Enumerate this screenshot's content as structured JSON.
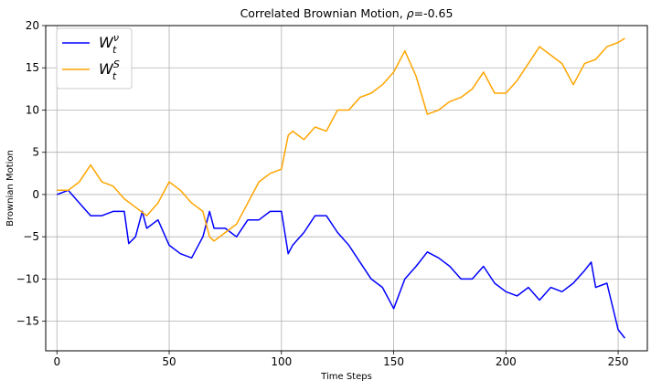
{
  "chart_data": {
    "type": "line",
    "title_prefix": "Correlated Brownian Motion, ",
    "title_rho": "ρ",
    "title_suffix": "=-0.65",
    "xlabel": "Time Steps",
    "ylabel": "Brownian Motion",
    "xlim": [
      -5,
      263
    ],
    "ylim": [
      -18.5,
      20
    ],
    "xticks": [
      0,
      50,
      100,
      150,
      200,
      250
    ],
    "yticks": [
      -15,
      -10,
      -5,
      0,
      5,
      10,
      15,
      20
    ],
    "grid": true,
    "legend_position": "top-left",
    "series": [
      {
        "name_main": "W",
        "name_sup": "ν",
        "name_sub": "t",
        "color": "#0000ff",
        "x": [
          0,
          5,
          10,
          15,
          20,
          25,
          30,
          32,
          35,
          38,
          40,
          45,
          50,
          55,
          60,
          65,
          68,
          70,
          75,
          80,
          85,
          90,
          95,
          100,
          103,
          105,
          110,
          115,
          120,
          125,
          130,
          135,
          140,
          145,
          150,
          155,
          160,
          165,
          170,
          175,
          180,
          185,
          190,
          195,
          200,
          205,
          210,
          215,
          220,
          225,
          230,
          235,
          238,
          240,
          245,
          250,
          253
        ],
        "values": [
          0,
          0.5,
          -1.0,
          -2.5,
          -2.5,
          -2.0,
          -2.0,
          -5.8,
          -5.0,
          -2.0,
          -4.0,
          -3.0,
          -6.0,
          -7.0,
          -7.5,
          -5.0,
          -2.0,
          -4.0,
          -4.0,
          -5.0,
          -3.0,
          -3.0,
          -2.0,
          -2.0,
          -7.0,
          -6.0,
          -4.5,
          -2.5,
          -2.5,
          -4.5,
          -6.0,
          -8.0,
          -10.0,
          -11.0,
          -13.5,
          -10.0,
          -8.5,
          -6.8,
          -7.5,
          -8.5,
          -10.0,
          -10.0,
          -8.5,
          -10.5,
          -11.5,
          -12.0,
          -11.0,
          -12.5,
          -11.0,
          -11.5,
          -10.5,
          -9.0,
          -8.0,
          -11.0,
          -10.5,
          -16.0,
          -17.0
        ]
      },
      {
        "name_main": "W",
        "name_sup": "S",
        "name_sub": "t",
        "color": "#ffa500",
        "x": [
          0,
          5,
          10,
          15,
          20,
          25,
          30,
          35,
          40,
          45,
          50,
          55,
          60,
          65,
          68,
          70,
          75,
          80,
          85,
          90,
          95,
          100,
          103,
          105,
          110,
          115,
          120,
          125,
          130,
          135,
          140,
          145,
          150,
          155,
          160,
          165,
          170,
          175,
          180,
          185,
          190,
          195,
          200,
          205,
          210,
          215,
          220,
          225,
          230,
          235,
          240,
          245,
          250,
          253
        ],
        "values": [
          0.5,
          0.5,
          1.5,
          3.5,
          1.5,
          1.0,
          -0.5,
          -1.5,
          -2.5,
          -1.0,
          1.5,
          0.5,
          -1.0,
          -2.0,
          -5.0,
          -5.5,
          -4.5,
          -3.5,
          -1.0,
          1.5,
          2.5,
          3.0,
          7.0,
          7.5,
          6.5,
          8.0,
          7.5,
          10.0,
          10.0,
          11.5,
          12.0,
          13.0,
          14.5,
          17.0,
          14.0,
          9.5,
          10.0,
          11.0,
          11.5,
          12.5,
          14.5,
          12.0,
          12.0,
          13.5,
          15.5,
          17.5,
          16.5,
          15.5,
          13.0,
          15.5,
          16.0,
          17.5,
          18.0,
          18.5
        ]
      }
    ]
  }
}
